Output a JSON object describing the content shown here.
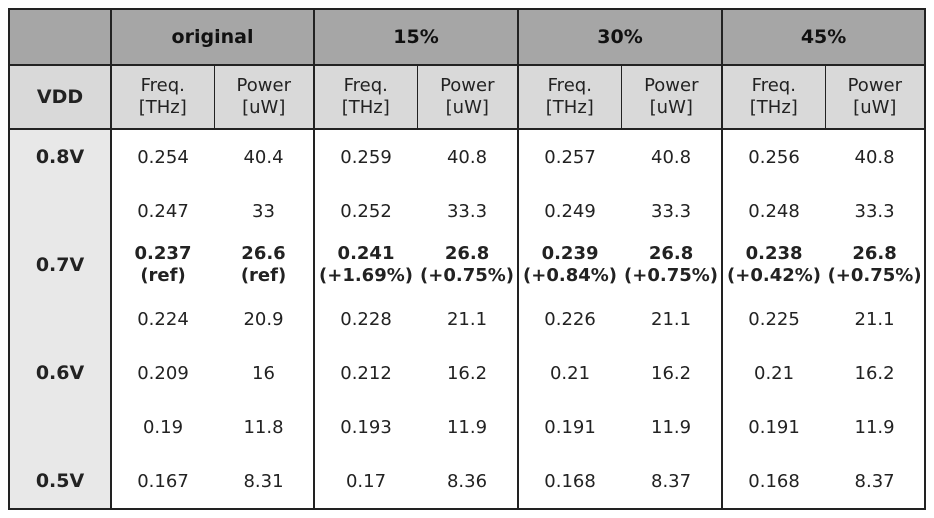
{
  "table": {
    "corner": "",
    "groups": [
      "original",
      "15%",
      "30%",
      "45%"
    ],
    "vdd_header": "VDD",
    "freq_header": {
      "line1": "Freq.",
      "line2": "[THz]"
    },
    "power_header": {
      "line1": "Power",
      "line2": "[uW]"
    },
    "rows": [
      {
        "vdd": "0.8V",
        "cells": [
          {
            "v": "0.254"
          },
          {
            "v": "40.4"
          },
          {
            "v": "0.259"
          },
          {
            "v": "40.8"
          },
          {
            "v": "0.257"
          },
          {
            "v": "40.8"
          },
          {
            "v": "0.256"
          },
          {
            "v": "40.8"
          }
        ]
      },
      {
        "vdd": "",
        "cells": [
          {
            "v": "0.247"
          },
          {
            "v": "33"
          },
          {
            "v": "0.252"
          },
          {
            "v": "33.3"
          },
          {
            "v": "0.249"
          },
          {
            "v": "33.3"
          },
          {
            "v": "0.248"
          },
          {
            "v": "33.3"
          }
        ]
      },
      {
        "vdd": "0.7V",
        "cells": [
          {
            "v": "0.237",
            "sub": "(ref)"
          },
          {
            "v": "26.6",
            "sub": "(ref)"
          },
          {
            "v": "0.241",
            "sub": "(+1.69%)"
          },
          {
            "v": "26.8",
            "sub": "(+0.75%)"
          },
          {
            "v": "0.239",
            "sub": "(+0.84%)"
          },
          {
            "v": "26.8",
            "sub": "(+0.75%)"
          },
          {
            "v": "0.238",
            "sub": "(+0.42%)"
          },
          {
            "v": "26.8",
            "sub": "(+0.75%)"
          }
        ]
      },
      {
        "vdd": "",
        "cells": [
          {
            "v": "0.224"
          },
          {
            "v": "20.9"
          },
          {
            "v": "0.228"
          },
          {
            "v": "21.1"
          },
          {
            "v": "0.226"
          },
          {
            "v": "21.1"
          },
          {
            "v": "0.225"
          },
          {
            "v": "21.1"
          }
        ]
      },
      {
        "vdd": "0.6V",
        "cells": [
          {
            "v": "0.209"
          },
          {
            "v": "16"
          },
          {
            "v": "0.212"
          },
          {
            "v": "16.2"
          },
          {
            "v": "0.21"
          },
          {
            "v": "16.2"
          },
          {
            "v": "0.21"
          },
          {
            "v": "16.2"
          }
        ]
      },
      {
        "vdd": "",
        "cells": [
          {
            "v": "0.19"
          },
          {
            "v": "11.8"
          },
          {
            "v": "0.193"
          },
          {
            "v": "11.9"
          },
          {
            "v": "0.191"
          },
          {
            "v": "11.9"
          },
          {
            "v": "0.191"
          },
          {
            "v": "11.9"
          }
        ]
      },
      {
        "vdd": "0.5V",
        "cells": [
          {
            "v": "0.167"
          },
          {
            "v": "8.31"
          },
          {
            "v": "0.17"
          },
          {
            "v": "8.36"
          },
          {
            "v": "0.168"
          },
          {
            "v": "8.37"
          },
          {
            "v": "0.168"
          },
          {
            "v": "8.37"
          }
        ]
      }
    ]
  }
}
